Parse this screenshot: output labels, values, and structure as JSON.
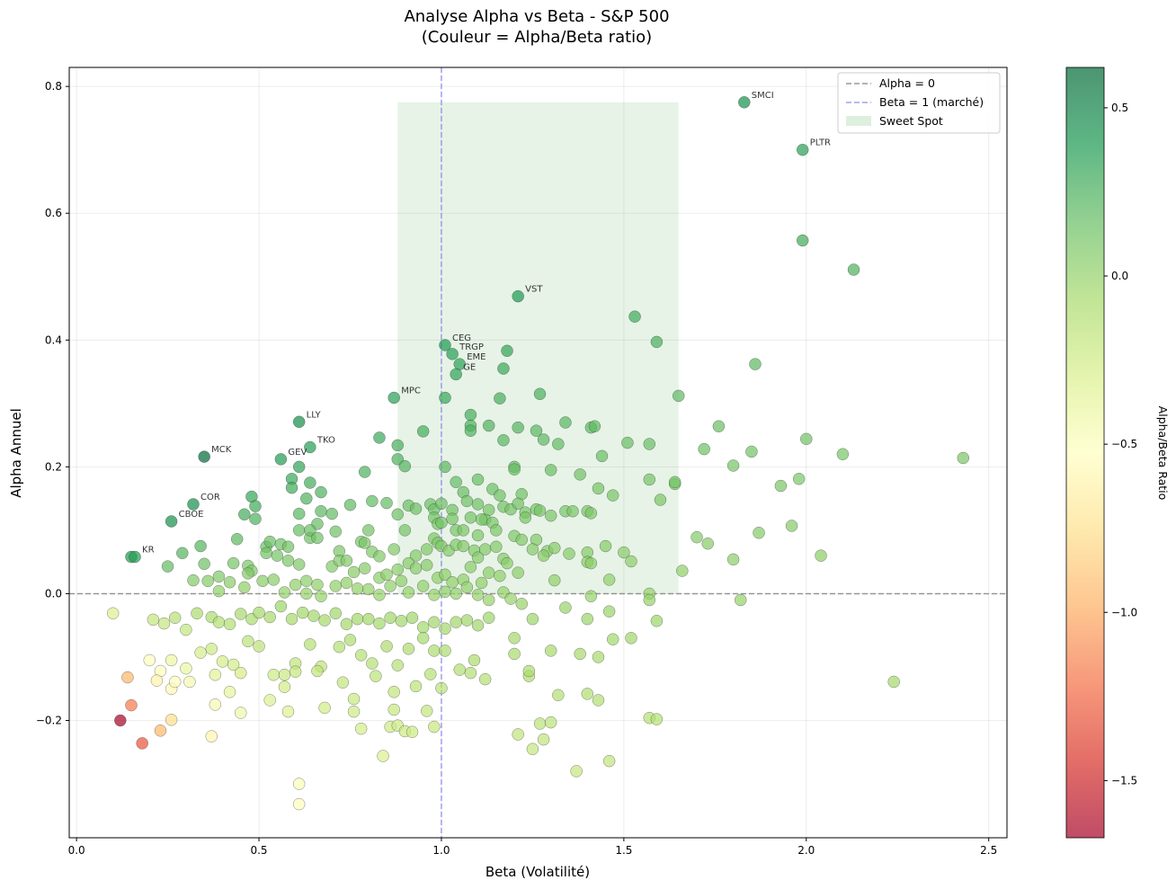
{
  "chart_data": {
    "type": "scatter",
    "title": "Analyse Alpha vs Beta - S&P 500",
    "subtitle": "(Couleur = Alpha/Beta ratio)",
    "xlabel": "Beta (Volatilité)",
    "ylabel": "Alpha Annuel",
    "xlim": [
      -0.02,
      2.55
    ],
    "ylim": [
      -0.385,
      0.83
    ],
    "xticks": [
      0.0,
      0.5,
      1.0,
      1.5,
      2.0,
      2.5
    ],
    "xtick_labels": [
      "0.0",
      "0.5",
      "1.0",
      "1.5",
      "2.0",
      "2.5"
    ],
    "yticks": [
      -0.2,
      0.0,
      0.2,
      0.4,
      0.6,
      0.8
    ],
    "ytick_labels": [
      "−0.2",
      "0.0",
      "0.2",
      "0.4",
      "0.6",
      "0.8"
    ],
    "grid": true,
    "reference_lines": [
      {
        "name": "Alpha = 0",
        "axis": "y",
        "value": 0,
        "color": "#808080",
        "style": "dashed"
      },
      {
        "name": "Beta = 1 (marché)",
        "axis": "x",
        "value": 1,
        "color": "#8888ee",
        "style": "dashed"
      }
    ],
    "sweet_spot": {
      "name": "Sweet Spot",
      "x_range": [
        0.88,
        1.65
      ],
      "y_range": [
        0,
        0.775
      ],
      "color": "#8fca8f"
    },
    "legend": {
      "position": "top-right",
      "entries": [
        "Alpha = 0",
        "Beta = 1 (marché)",
        "Sweet Spot"
      ]
    },
    "colorbar": {
      "label": "Alpha/Beta Ratio",
      "range": [
        -1.67,
        0.62
      ],
      "ticks": [
        0.5,
        0.0,
        -0.5,
        -1.0,
        -1.5
      ],
      "tick_labels": [
        "0.5",
        "0.0",
        "−0.5",
        "−1.0",
        "−1.5"
      ],
      "colors": [
        "#a50026",
        "#d73027",
        "#f46d43",
        "#fdae61",
        "#fee08b",
        "#ffffbf",
        "#d9ef8b",
        "#a6d96a",
        "#66bd63",
        "#1a9850",
        "#006837"
      ]
    },
    "labeled_points": [
      {
        "label": "SMCI",
        "x": 1.83,
        "y": 0.775
      },
      {
        "label": "PLTR",
        "x": 1.99,
        "y": 0.7
      },
      {
        "label": "VST",
        "x": 1.21,
        "y": 0.469
      },
      {
        "label": "CEG",
        "x": 1.01,
        "y": 0.392
      },
      {
        "label": "TRGP",
        "x": 1.03,
        "y": 0.378
      },
      {
        "label": "EME",
        "x": 1.05,
        "y": 0.362
      },
      {
        "label": "GE",
        "x": 1.04,
        "y": 0.346
      },
      {
        "label": "MPC",
        "x": 0.87,
        "y": 0.309
      },
      {
        "label": "LLY",
        "x": 0.61,
        "y": 0.271
      },
      {
        "label": "TKO",
        "x": 0.64,
        "y": 0.231
      },
      {
        "label": "GEV",
        "x": 0.56,
        "y": 0.212
      },
      {
        "label": "MCK",
        "x": 0.35,
        "y": 0.216
      },
      {
        "label": "COR",
        "x": 0.32,
        "y": 0.141
      },
      {
        "label": "CBOE",
        "x": 0.26,
        "y": 0.114
      },
      {
        "label": "KR",
        "x": 0.16,
        "y": 0.058
      }
    ],
    "points": [
      [
        1.99,
        0.557
      ],
      [
        2.13,
        0.511
      ],
      [
        1.53,
        0.437
      ],
      [
        1.59,
        0.397
      ],
      [
        1.18,
        0.383
      ],
      [
        1.86,
        0.362
      ],
      [
        1.17,
        0.355
      ],
      [
        1.27,
        0.315
      ],
      [
        1.65,
        0.312
      ],
      [
        1.01,
        0.309
      ],
      [
        1.16,
        0.308
      ],
      [
        1.08,
        0.282
      ],
      [
        0.95,
        0.256
      ],
      [
        1.08,
        0.265
      ],
      [
        1.08,
        0.257
      ],
      [
        1.13,
        0.265
      ],
      [
        1.21,
        0.262
      ],
      [
        1.26,
        0.257
      ],
      [
        1.34,
        0.27
      ],
      [
        1.41,
        0.262
      ],
      [
        1.42,
        0.264
      ],
      [
        1.76,
        0.264
      ],
      [
        0.83,
        0.246
      ],
      [
        0.88,
        0.234
      ],
      [
        1.17,
        0.242
      ],
      [
        1.28,
        0.243
      ],
      [
        1.32,
        0.236
      ],
      [
        1.51,
        0.238
      ],
      [
        1.57,
        0.236
      ],
      [
        1.72,
        0.228
      ],
      [
        1.85,
        0.224
      ],
      [
        2.1,
        0.22
      ],
      [
        2.0,
        0.244
      ],
      [
        2.43,
        0.214
      ],
      [
        0.61,
        0.2
      ],
      [
        0.88,
        0.212
      ],
      [
        0.9,
        0.201
      ],
      [
        1.01,
        0.2
      ],
      [
        1.2,
        0.2
      ],
      [
        1.2,
        0.196
      ],
      [
        1.3,
        0.195
      ],
      [
        1.38,
        0.188
      ],
      [
        1.44,
        0.217
      ],
      [
        1.8,
        0.202
      ],
      [
        1.93,
        0.17
      ],
      [
        1.98,
        0.181
      ],
      [
        0.59,
        0.181
      ],
      [
        0.64,
        0.175
      ],
      [
        0.79,
        0.192
      ],
      [
        1.04,
        0.176
      ],
      [
        1.06,
        0.16
      ],
      [
        1.1,
        0.18
      ],
      [
        1.14,
        0.165
      ],
      [
        1.16,
        0.155
      ],
      [
        1.22,
        0.157
      ],
      [
        1.26,
        0.133
      ],
      [
        1.3,
        0.123
      ],
      [
        1.34,
        0.13
      ],
      [
        1.43,
        0.166
      ],
      [
        1.47,
        0.155
      ],
      [
        1.57,
        0.18
      ],
      [
        1.6,
        0.148
      ],
      [
        1.64,
        0.173
      ],
      [
        1.64,
        0.176
      ],
      [
        0.48,
        0.153
      ],
      [
        0.49,
        0.138
      ],
      [
        0.59,
        0.167
      ],
      [
        0.63,
        0.15
      ],
      [
        0.67,
        0.16
      ],
      [
        0.81,
        0.146
      ],
      [
        0.85,
        0.143
      ],
      [
        0.88,
        0.125
      ],
      [
        0.91,
        0.139
      ],
      [
        0.93,
        0.134
      ],
      [
        0.97,
        0.141
      ],
      [
        0.98,
        0.133
      ],
      [
        1.0,
        0.142
      ],
      [
        1.03,
        0.132
      ],
      [
        1.07,
        0.146
      ],
      [
        1.1,
        0.141
      ],
      [
        1.12,
        0.117
      ],
      [
        1.13,
        0.132
      ],
      [
        1.17,
        0.137
      ],
      [
        1.19,
        0.133
      ],
      [
        1.21,
        0.142
      ],
      [
        1.23,
        0.128
      ],
      [
        1.27,
        0.131
      ],
      [
        1.36,
        0.13
      ],
      [
        1.4,
        0.13
      ],
      [
        1.41,
        0.127
      ],
      [
        1.7,
        0.089
      ],
      [
        1.73,
        0.079
      ],
      [
        1.87,
        0.096
      ],
      [
        1.96,
        0.107
      ],
      [
        2.04,
        0.06
      ],
      [
        0.46,
        0.125
      ],
      [
        0.49,
        0.118
      ],
      [
        0.61,
        0.126
      ],
      [
        0.66,
        0.11
      ],
      [
        0.67,
        0.13
      ],
      [
        0.7,
        0.126
      ],
      [
        0.75,
        0.14
      ],
      [
        0.98,
        0.12
      ],
      [
        0.99,
        0.11
      ],
      [
        1.0,
        0.112
      ],
      [
        1.03,
        0.118
      ],
      [
        1.04,
        0.1
      ],
      [
        1.06,
        0.1
      ],
      [
        1.08,
        0.12
      ],
      [
        1.1,
        0.092
      ],
      [
        1.11,
        0.117
      ],
      [
        1.14,
        0.112
      ],
      [
        1.15,
        0.1
      ],
      [
        1.2,
        0.091
      ],
      [
        1.23,
        0.12
      ],
      [
        1.26,
        0.085
      ],
      [
        1.29,
        0.067
      ],
      [
        1.31,
        0.072
      ],
      [
        1.35,
        0.063
      ],
      [
        1.4,
        0.065
      ],
      [
        1.45,
        0.075
      ],
      [
        1.5,
        0.065
      ],
      [
        1.52,
        0.051
      ],
      [
        1.8,
        0.054
      ],
      [
        0.34,
        0.075
      ],
      [
        0.44,
        0.086
      ],
      [
        0.52,
        0.074
      ],
      [
        0.53,
        0.082
      ],
      [
        0.56,
        0.078
      ],
      [
        0.58,
        0.074
      ],
      [
        0.61,
        0.1
      ],
      [
        0.64,
        0.088
      ],
      [
        0.64,
        0.1
      ],
      [
        0.66,
        0.088
      ],
      [
        0.71,
        0.098
      ],
      [
        0.72,
        0.067
      ],
      [
        0.78,
        0.082
      ],
      [
        0.79,
        0.08
      ],
      [
        0.8,
        0.1
      ],
      [
        0.81,
        0.066
      ],
      [
        0.83,
        0.059
      ],
      [
        0.87,
        0.07
      ],
      [
        0.9,
        0.1
      ],
      [
        0.93,
        0.06
      ],
      [
        0.96,
        0.07
      ],
      [
        0.98,
        0.087
      ],
      [
        0.99,
        0.08
      ],
      [
        1.0,
        0.075
      ],
      [
        1.02,
        0.068
      ],
      [
        1.04,
        0.077
      ],
      [
        1.06,
        0.075
      ],
      [
        1.09,
        0.068
      ],
      [
        1.1,
        0.057
      ],
      [
        1.12,
        0.07
      ],
      [
        1.15,
        0.074
      ],
      [
        1.17,
        0.055
      ],
      [
        1.22,
        0.085
      ],
      [
        1.25,
        0.07
      ],
      [
        1.28,
        0.06
      ],
      [
        1.4,
        0.05
      ],
      [
        1.41,
        0.048
      ],
      [
        1.46,
        0.022
      ],
      [
        1.66,
        0.036
      ],
      [
        0.15,
        0.058
      ],
      [
        0.25,
        0.043
      ],
      [
        0.29,
        0.064
      ],
      [
        0.35,
        0.047
      ],
      [
        0.39,
        0.027
      ],
      [
        0.43,
        0.048
      ],
      [
        0.47,
        0.044
      ],
      [
        0.48,
        0.036
      ],
      [
        0.52,
        0.064
      ],
      [
        0.55,
        0.06
      ],
      [
        0.58,
        0.052
      ],
      [
        0.61,
        0.046
      ],
      [
        0.63,
        0.02
      ],
      [
        0.66,
        0.014
      ],
      [
        0.7,
        0.043
      ],
      [
        0.72,
        0.052
      ],
      [
        0.74,
        0.052
      ],
      [
        0.76,
        0.034
      ],
      [
        0.79,
        0.04
      ],
      [
        0.83,
        0.025
      ],
      [
        0.85,
        0.03
      ],
      [
        0.88,
        0.038
      ],
      [
        0.91,
        0.048
      ],
      [
        0.93,
        0.04
      ],
      [
        0.96,
        0.045
      ],
      [
        0.99,
        0.025
      ],
      [
        1.01,
        0.03
      ],
      [
        1.03,
        0.018
      ],
      [
        1.06,
        0.022
      ],
      [
        1.08,
        0.042
      ],
      [
        1.11,
        0.017
      ],
      [
        1.13,
        0.033
      ],
      [
        1.16,
        0.028
      ],
      [
        1.18,
        0.048
      ],
      [
        1.21,
        0.033
      ],
      [
        1.31,
        0.021
      ],
      [
        0.32,
        0.021
      ],
      [
        0.36,
        0.02
      ],
      [
        0.39,
        0.004
      ],
      [
        0.42,
        0.018
      ],
      [
        0.46,
        0.01
      ],
      [
        0.47,
        0.032
      ],
      [
        0.51,
        0.02
      ],
      [
        0.54,
        0.022
      ],
      [
        0.57,
        0.002
      ],
      [
        0.6,
        0.014
      ],
      [
        0.63,
        0.0
      ],
      [
        0.67,
        -0.004
      ],
      [
        0.71,
        0.012
      ],
      [
        0.74,
        0.017
      ],
      [
        0.77,
        0.008
      ],
      [
        0.8,
        0.007
      ],
      [
        0.83,
        -0.002
      ],
      [
        0.86,
        0.012
      ],
      [
        0.89,
        0.02
      ],
      [
        0.91,
        0.002
      ],
      [
        0.95,
        0.012
      ],
      [
        0.98,
        -0.002
      ],
      [
        1.01,
        0.003
      ],
      [
        1.04,
        0.0
      ],
      [
        1.07,
        0.01
      ],
      [
        1.1,
        -0.002
      ],
      [
        1.13,
        -0.01
      ],
      [
        1.17,
        0.002
      ],
      [
        1.19,
        -0.008
      ],
      [
        1.22,
        -0.016
      ],
      [
        1.34,
        -0.022
      ],
      [
        1.41,
        -0.004
      ],
      [
        1.57,
        0.0
      ],
      [
        1.57,
        -0.01
      ],
      [
        1.82,
        -0.01
      ],
      [
        0.1,
        -0.031
      ],
      [
        0.21,
        -0.041
      ],
      [
        0.24,
        -0.047
      ],
      [
        0.27,
        -0.038
      ],
      [
        0.3,
        -0.057
      ],
      [
        0.33,
        -0.031
      ],
      [
        0.37,
        -0.037
      ],
      [
        0.39,
        -0.045
      ],
      [
        0.42,
        -0.048
      ],
      [
        0.45,
        -0.032
      ],
      [
        0.48,
        -0.04
      ],
      [
        0.5,
        -0.03
      ],
      [
        0.53,
        -0.037
      ],
      [
        0.56,
        -0.02
      ],
      [
        0.59,
        -0.04
      ],
      [
        0.62,
        -0.03
      ],
      [
        0.65,
        -0.035
      ],
      [
        0.68,
        -0.042
      ],
      [
        0.71,
        -0.031
      ],
      [
        0.74,
        -0.048
      ],
      [
        0.77,
        -0.04
      ],
      [
        0.8,
        -0.04
      ],
      [
        0.83,
        -0.047
      ],
      [
        0.86,
        -0.038
      ],
      [
        0.89,
        -0.043
      ],
      [
        0.92,
        -0.038
      ],
      [
        0.95,
        -0.053
      ],
      [
        0.98,
        -0.045
      ],
      [
        1.01,
        -0.055
      ],
      [
        1.04,
        -0.045
      ],
      [
        1.07,
        -0.042
      ],
      [
        1.1,
        -0.05
      ],
      [
        1.13,
        -0.038
      ],
      [
        1.2,
        -0.07
      ],
      [
        1.25,
        -0.04
      ],
      [
        1.4,
        -0.04
      ],
      [
        1.46,
        -0.028
      ],
      [
        1.59,
        -0.043
      ],
      [
        0.2,
        -0.105
      ],
      [
        0.23,
        -0.122
      ],
      [
        0.26,
        -0.105
      ],
      [
        0.3,
        -0.118
      ],
      [
        0.34,
        -0.093
      ],
      [
        0.37,
        -0.087
      ],
      [
        0.4,
        -0.107
      ],
      [
        0.43,
        -0.112
      ],
      [
        0.47,
        -0.075
      ],
      [
        0.5,
        -0.083
      ],
      [
        0.54,
        -0.128
      ],
      [
        0.57,
        -0.128
      ],
      [
        0.6,
        -0.11
      ],
      [
        0.64,
        -0.08
      ],
      [
        0.67,
        -0.115
      ],
      [
        0.72,
        -0.084
      ],
      [
        0.75,
        -0.073
      ],
      [
        0.78,
        -0.097
      ],
      [
        0.81,
        -0.11
      ],
      [
        0.85,
        -0.083
      ],
      [
        0.88,
        -0.113
      ],
      [
        0.91,
        -0.087
      ],
      [
        0.95,
        -0.07
      ],
      [
        0.98,
        -0.09
      ],
      [
        1.01,
        -0.09
      ],
      [
        1.05,
        -0.12
      ],
      [
        1.09,
        -0.105
      ],
      [
        1.12,
        -0.135
      ],
      [
        1.2,
        -0.095
      ],
      [
        1.24,
        -0.13
      ],
      [
        1.3,
        -0.09
      ],
      [
        1.38,
        -0.095
      ],
      [
        1.43,
        -0.1
      ],
      [
        1.47,
        -0.072
      ],
      [
        1.52,
        -0.07
      ],
      [
        0.22,
        -0.137
      ],
      [
        0.26,
        -0.15
      ],
      [
        0.27,
        -0.139
      ],
      [
        0.31,
        -0.139
      ],
      [
        0.38,
        -0.128
      ],
      [
        0.42,
        -0.155
      ],
      [
        0.45,
        -0.125
      ],
      [
        0.53,
        -0.168
      ],
      [
        0.57,
        -0.147
      ],
      [
        0.6,
        -0.123
      ],
      [
        0.66,
        -0.122
      ],
      [
        0.73,
        -0.14
      ],
      [
        0.76,
        -0.166
      ],
      [
        0.82,
        -0.13
      ],
      [
        0.87,
        -0.155
      ],
      [
        0.93,
        -0.146
      ],
      [
        0.97,
        -0.127
      ],
      [
        1.0,
        -0.149
      ],
      [
        1.08,
        -0.125
      ],
      [
        1.24,
        -0.122
      ],
      [
        1.32,
        -0.16
      ],
      [
        1.4,
        -0.158
      ],
      [
        1.43,
        -0.168
      ],
      [
        2.24,
        -0.139
      ],
      [
        0.23,
        -0.216
      ],
      [
        0.26,
        -0.199
      ],
      [
        0.37,
        -0.225
      ],
      [
        0.38,
        -0.175
      ],
      [
        0.45,
        -0.188
      ],
      [
        0.58,
        -0.186
      ],
      [
        0.68,
        -0.18
      ],
      [
        0.76,
        -0.186
      ],
      [
        0.78,
        -0.213
      ],
      [
        0.87,
        -0.183
      ],
      [
        0.86,
        -0.21
      ],
      [
        0.88,
        -0.208
      ],
      [
        0.9,
        -0.217
      ],
      [
        0.92,
        -0.218
      ],
      [
        0.96,
        -0.185
      ],
      [
        0.98,
        -0.21
      ],
      [
        1.21,
        -0.222
      ],
      [
        1.25,
        -0.245
      ],
      [
        1.27,
        -0.205
      ],
      [
        1.28,
        -0.23
      ],
      [
        1.3,
        -0.203
      ],
      [
        1.37,
        -0.28
      ],
      [
        1.46,
        -0.264
      ],
      [
        1.57,
        -0.196
      ],
      [
        1.59,
        -0.198
      ],
      [
        0.84,
        -0.256
      ],
      [
        0.61,
        -0.3
      ],
      [
        0.61,
        -0.332
      ],
      [
        0.14,
        -0.132
      ],
      [
        0.15,
        -0.176
      ],
      [
        0.12,
        -0.2
      ],
      [
        0.18,
        -0.236
      ]
    ]
  }
}
